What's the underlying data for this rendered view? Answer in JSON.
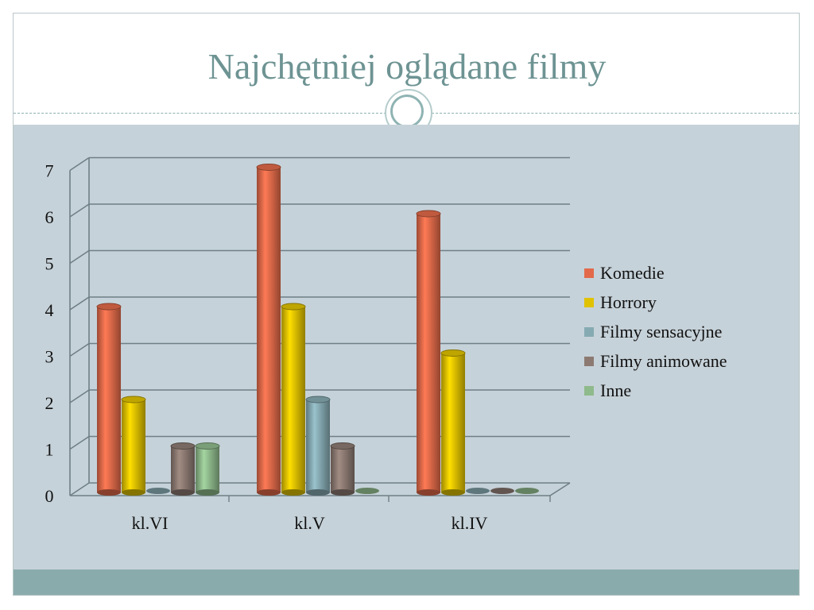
{
  "slide": {
    "title": "Najchętniej oglądane filmy"
  },
  "chart_data": {
    "type": "bar",
    "categories": [
      "kl.VI",
      "kl.V",
      "kl.IV"
    ],
    "series": [
      {
        "name": "Komedie",
        "color": "#e26a4a",
        "values": [
          4,
          7,
          6
        ]
      },
      {
        "name": "Horrory",
        "color": "#e0c200",
        "values": [
          2,
          4,
          3
        ]
      },
      {
        "name": "Filmy sensacyjne",
        "color": "#86aab2",
        "values": [
          0,
          2,
          0
        ]
      },
      {
        "name": "Filmy animowane",
        "color": "#8c7a72",
        "values": [
          1,
          1,
          0
        ]
      },
      {
        "name": "Inne",
        "color": "#8fba8c",
        "values": [
          1,
          0,
          0
        ]
      }
    ],
    "ylim": [
      0,
      7
    ],
    "yticks": [
      "0",
      "1",
      "2",
      "3",
      "4",
      "5",
      "6",
      "7"
    ],
    "grid": true,
    "legend": "right",
    "style": "3d-cylinder"
  }
}
